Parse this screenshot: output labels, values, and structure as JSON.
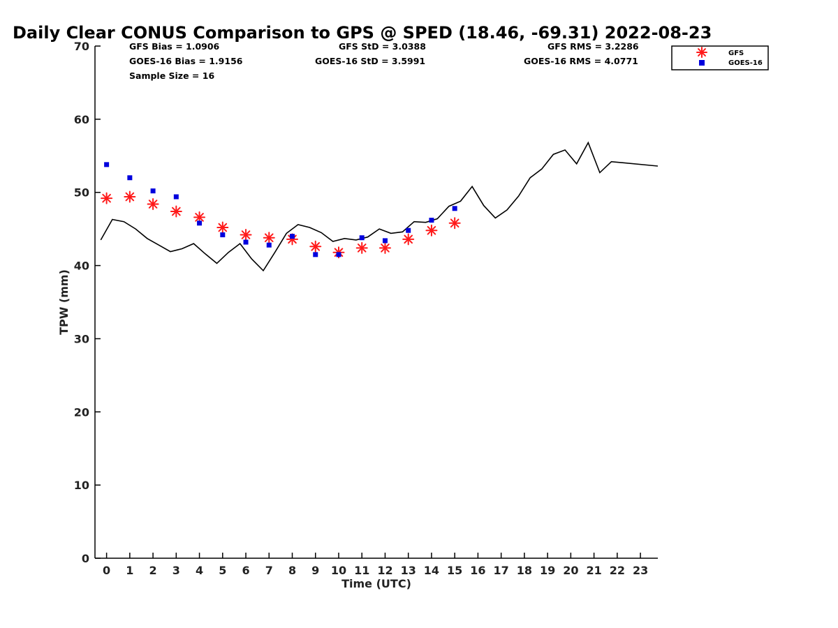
{
  "chart_data": {
    "type": "line",
    "title": "Daily Clear CONUS Comparison to GPS @ SPED (18.46, -69.31) 2022-08-23",
    "xlabel": "Time (UTC)",
    "ylabel": "TPW (mm)",
    "xlim": [
      -0.5,
      23.75
    ],
    "ylim": [
      0,
      70
    ],
    "x_ticks": [
      0,
      1,
      2,
      3,
      4,
      5,
      6,
      7,
      8,
      9,
      10,
      11,
      12,
      13,
      14,
      15,
      16,
      17,
      18,
      19,
      20,
      21,
      22,
      23
    ],
    "x_tick_labels": [
      "0",
      "1",
      "2",
      "3",
      "4",
      "5",
      "6",
      "7",
      "8",
      "9",
      "10",
      "11",
      "12",
      "13",
      "14",
      "15",
      "16",
      "17",
      "18",
      "19",
      "20",
      "21",
      "22",
      "23"
    ],
    "y_ticks": [
      0,
      10,
      20,
      30,
      40,
      50,
      60,
      70
    ],
    "y_tick_labels": [
      "0",
      "10",
      "20",
      "30",
      "40",
      "50",
      "60",
      "70"
    ],
    "stats": {
      "gfs_bias": "GFS Bias = 1.0906",
      "goes_bias": "GOES-16 Bias = 1.9156",
      "sample_size": "Sample Size = 16",
      "gfs_std": "GFS StD = 3.0388",
      "goes_std": "GOES-16 StD = 3.5991",
      "gfs_rms": "GFS RMS = 3.2286",
      "goes_rms": "GOES-16 RMS = 4.0771"
    },
    "legend": {
      "position": "top-right",
      "entries": [
        "GFS",
        "GOES-16"
      ]
    },
    "series": [
      {
        "name": "GPS",
        "kind": "line",
        "color": "#000000",
        "x": [
          -0.25,
          0.25,
          0.75,
          1.25,
          1.75,
          2.25,
          2.75,
          3.25,
          3.75,
          4.25,
          4.75,
          5.25,
          5.75,
          6.25,
          6.75,
          7.25,
          7.75,
          8.25,
          8.75,
          9.25,
          9.75,
          10.25,
          10.75,
          11.25,
          11.75,
          12.25,
          12.75,
          13.25,
          13.75,
          14.25,
          14.75,
          15.25,
          15.75,
          16.25,
          16.75,
          17.25,
          17.75,
          18.25,
          18.75,
          19.25,
          19.75,
          20.25,
          20.75,
          21.25,
          21.75,
          23.75
        ],
        "y": [
          43.5,
          46.3,
          46.0,
          45.0,
          43.7,
          42.8,
          41.9,
          42.3,
          43.0,
          41.6,
          40.3,
          41.8,
          43.0,
          40.9,
          39.3,
          41.8,
          44.4,
          45.6,
          45.2,
          44.5,
          43.3,
          43.7,
          43.5,
          43.9,
          45.0,
          44.4,
          44.6,
          46.0,
          45.9,
          46.4,
          48.1,
          48.8,
          50.8,
          48.2,
          46.5,
          47.6,
          49.5,
          52.0,
          53.2,
          55.2,
          55.8,
          53.9,
          56.8,
          52.7,
          54.2,
          53.6
        ]
      },
      {
        "name": "GFS",
        "kind": "scatter",
        "marker": "asterisk",
        "color": "#ff1a1a",
        "x": [
          0,
          1,
          2,
          3,
          4,
          5,
          6,
          7,
          8,
          9,
          10,
          11,
          12,
          13,
          14,
          15
        ],
        "y": [
          49.2,
          49.4,
          48.4,
          47.4,
          46.6,
          45.2,
          44.2,
          43.8,
          43.6,
          42.6,
          41.8,
          42.4,
          42.4,
          43.6,
          44.8,
          45.8
        ]
      },
      {
        "name": "GOES-16",
        "kind": "scatter",
        "marker": "square",
        "color": "#0000dd",
        "x": [
          0,
          1,
          2,
          3,
          4,
          5,
          6,
          7,
          8,
          9,
          10,
          11,
          12,
          13,
          14,
          15
        ],
        "y": [
          53.8,
          52.0,
          50.2,
          49.4,
          45.8,
          44.2,
          43.2,
          42.8,
          44.0,
          41.5,
          41.5,
          43.8,
          43.4,
          44.8,
          46.2,
          47.8
        ]
      }
    ]
  }
}
